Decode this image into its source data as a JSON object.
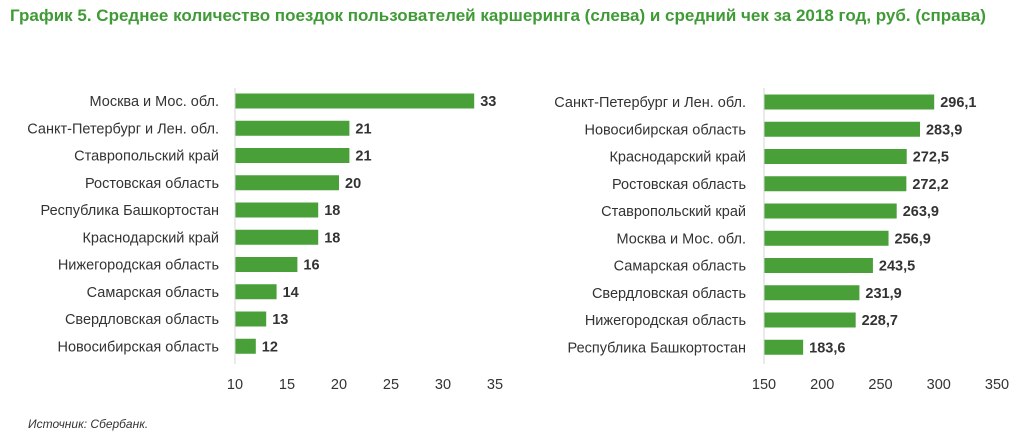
{
  "title": "График 5. Среднее количество поездок пользователей каршеринга (слева) и средний чек за 2018 год, руб. (справа)",
  "source": "Источник: Сбербанк.",
  "colors": {
    "bar": "#49a038",
    "title": "#3f9b35",
    "axis": "#d4d4d4"
  },
  "chart_data": [
    {
      "type": "bar",
      "orientation": "horizontal",
      "categories": [
        "Москва и Мос. обл.",
        "Санкт-Петербург и Лен. обл.",
        "Ставропольский край",
        "Ростовская область",
        "Республика Башкортостан",
        "Краснодарский край",
        "Нижегородская область",
        "Самарская область",
        "Свердловская область",
        "Новосибирская область"
      ],
      "values": [
        33,
        21,
        21,
        20,
        18,
        18,
        16,
        14,
        13,
        12
      ],
      "value_labels": [
        "33",
        "21",
        "21",
        "20",
        "18",
        "18",
        "16",
        "14",
        "13",
        "12"
      ],
      "xlim": [
        10,
        35
      ],
      "xticks": [
        10,
        15,
        20,
        25,
        30,
        35
      ],
      "grid": false
    },
    {
      "type": "bar",
      "orientation": "horizontal",
      "categories": [
        "Санкт-Петербург и Лен. обл.",
        "Новосибирская область",
        "Краснодарский край",
        "Ростовская область",
        "Ставропольский край",
        "Москва и Мос. обл.",
        "Самарская область",
        "Свердловская область",
        "Нижегородская область",
        "Республика Башкортостан"
      ],
      "values": [
        296.1,
        283.9,
        272.5,
        272.2,
        263.9,
        256.9,
        243.5,
        231.9,
        228.7,
        183.6
      ],
      "value_labels": [
        "296,1",
        "283,9",
        "272,5",
        "272,2",
        "263,9",
        "256,9",
        "243,5",
        "231,9",
        "228,7",
        "183,6"
      ],
      "xlim": [
        150,
        350
      ],
      "xticks": [
        150,
        200,
        250,
        300,
        350
      ],
      "grid": false
    }
  ]
}
